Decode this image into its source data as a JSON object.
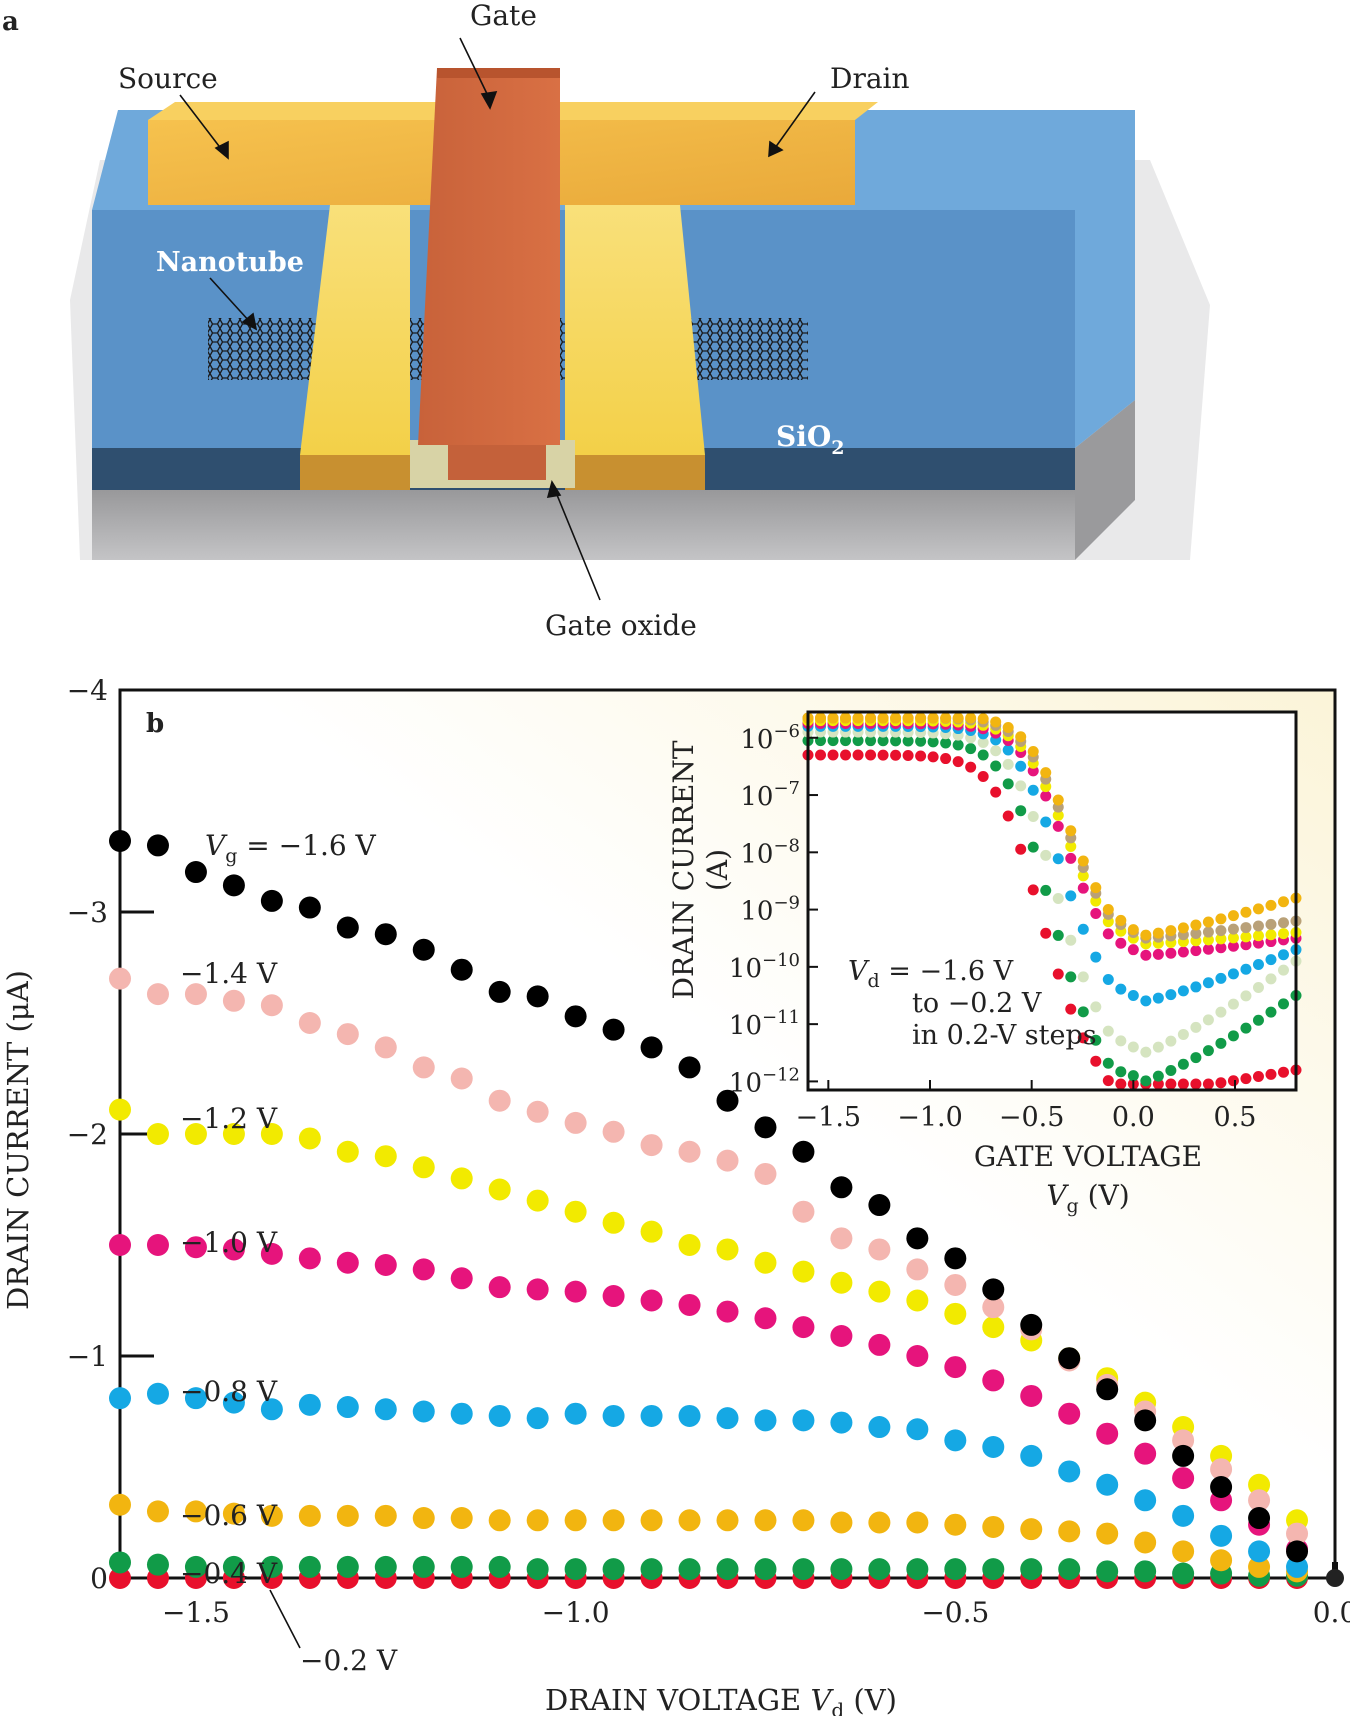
{
  "panel_a": {
    "label": "a",
    "gate": "Gate",
    "source": "Source",
    "drain": "Drain",
    "nanotube": "Nanotube",
    "sio2": "SiO",
    "sio2_sub": "2",
    "gate_oxide": "Gate oxide"
  },
  "chart_data": [
    {
      "id": "main",
      "panel_label": "b",
      "type": "scatter",
      "xlabel_main": "DRAIN VOLTAGE ",
      "xlabel_var": "V",
      "xlabel_sub": "d",
      "xlabel_unit": " (V)",
      "ylabel": "DRAIN CURRENT (μA)",
      "xlim": [
        -1.6,
        0.0
      ],
      "ylim": [
        0,
        -4
      ],
      "xticks": [
        -1.5,
        -1.0,
        -0.5,
        0.0
      ],
      "xtick_labels": [
        "−1.5",
        "−1.0",
        "−0.5",
        "0.0"
      ],
      "yticks": [
        0,
        -1,
        -2,
        -3,
        -4
      ],
      "ytick_labels": [
        "0",
        "−1",
        "−2",
        "−3",
        "−4"
      ],
      "x": [
        -1.6,
        -1.55,
        -1.5,
        -1.45,
        -1.4,
        -1.35,
        -1.3,
        -1.25,
        -1.2,
        -1.15,
        -1.1,
        -1.05,
        -1.0,
        -0.95,
        -0.9,
        -0.85,
        -0.8,
        -0.75,
        -0.7,
        -0.65,
        -0.6,
        -0.55,
        -0.5,
        -0.45,
        -0.4,
        -0.35,
        -0.3,
        -0.25,
        -0.2,
        -0.15,
        -0.1,
        -0.05
      ],
      "series": [
        {
          "name": "−1.6 V",
          "color": "#000000",
          "values": [
            -3.32,
            -3.3,
            -3.18,
            -3.12,
            -3.05,
            -3.02,
            -2.93,
            -2.9,
            -2.83,
            -2.74,
            -2.64,
            -2.62,
            -2.53,
            -2.47,
            -2.39,
            -2.3,
            -2.15,
            -2.03,
            -1.92,
            -1.76,
            -1.68,
            -1.53,
            -1.44,
            -1.3,
            -1.14,
            -0.99,
            -0.85,
            -0.71,
            -0.55,
            -0.41,
            -0.27,
            -0.12
          ]
        },
        {
          "name": "−1.4 V",
          "color": "#f4b6b0",
          "values": [
            -2.7,
            -2.63,
            -2.63,
            -2.6,
            -2.58,
            -2.5,
            -2.45,
            -2.39,
            -2.3,
            -2.25,
            -2.15,
            -2.1,
            -2.05,
            -2.01,
            -1.95,
            -1.92,
            -1.88,
            -1.82,
            -1.65,
            -1.53,
            -1.48,
            -1.39,
            -1.32,
            -1.22,
            -1.12,
            -0.98,
            -0.87,
            -0.75,
            -0.62,
            -0.49,
            -0.35,
            -0.2
          ]
        },
        {
          "name": "−1.2 V",
          "color": "#f2ea00",
          "values": [
            -2.11,
            -2.0,
            -2.0,
            -2.0,
            -2.0,
            -1.98,
            -1.92,
            -1.9,
            -1.85,
            -1.8,
            -1.75,
            -1.7,
            -1.65,
            -1.6,
            -1.56,
            -1.5,
            -1.48,
            -1.42,
            -1.38,
            -1.33,
            -1.29,
            -1.25,
            -1.19,
            -1.13,
            -1.07,
            -0.99,
            -0.9,
            -0.79,
            -0.68,
            -0.55,
            -0.42,
            -0.26
          ]
        },
        {
          "name": "−1.0 V",
          "color": "#e6147c",
          "values": [
            -1.5,
            -1.5,
            -1.49,
            -1.48,
            -1.46,
            -1.44,
            -1.42,
            -1.41,
            -1.39,
            -1.35,
            -1.31,
            -1.3,
            -1.29,
            -1.27,
            -1.25,
            -1.23,
            -1.2,
            -1.17,
            -1.13,
            -1.09,
            -1.05,
            -1.0,
            -0.95,
            -0.89,
            -0.82,
            -0.74,
            -0.65,
            -0.56,
            -0.45,
            -0.35,
            -0.24,
            -0.13
          ]
        },
        {
          "name": "−0.8 V",
          "color": "#15a8e4",
          "values": [
            -0.81,
            -0.83,
            -0.81,
            -0.79,
            -0.76,
            -0.78,
            -0.77,
            -0.76,
            -0.75,
            -0.74,
            -0.73,
            -0.72,
            -0.74,
            -0.73,
            -0.73,
            -0.73,
            -0.72,
            -0.71,
            -0.71,
            -0.7,
            -0.68,
            -0.67,
            -0.62,
            -0.59,
            -0.55,
            -0.48,
            -0.42,
            -0.35,
            -0.28,
            -0.19,
            -0.12,
            -0.05
          ]
        },
        {
          "name": "−0.6 V",
          "color": "#f2b510",
          "values": [
            -0.33,
            -0.3,
            -0.3,
            -0.29,
            -0.28,
            -0.28,
            -0.28,
            -0.28,
            -0.27,
            -0.27,
            -0.26,
            -0.26,
            -0.26,
            -0.26,
            -0.26,
            -0.26,
            -0.26,
            -0.26,
            -0.26,
            -0.25,
            -0.25,
            -0.25,
            -0.24,
            -0.23,
            -0.22,
            -0.21,
            -0.2,
            -0.16,
            -0.12,
            -0.08,
            -0.05,
            -0.03
          ]
        },
        {
          "name": "−0.4 V",
          "color": "#119b48",
          "values": [
            -0.07,
            -0.06,
            -0.05,
            -0.05,
            -0.05,
            -0.05,
            -0.05,
            -0.05,
            -0.05,
            -0.05,
            -0.05,
            -0.04,
            -0.04,
            -0.04,
            -0.04,
            -0.04,
            -0.04,
            -0.04,
            -0.04,
            -0.04,
            -0.04,
            -0.04,
            -0.04,
            -0.04,
            -0.04,
            -0.04,
            -0.03,
            -0.03,
            -0.02,
            -0.02,
            -0.01,
            -0.01
          ]
        },
        {
          "name": "−0.2 V",
          "color": "#e8102c",
          "values": [
            0,
            0,
            0,
            0,
            0,
            0,
            0,
            0,
            0,
            0,
            0,
            0,
            0,
            0,
            0,
            0,
            0,
            0,
            0,
            0,
            0,
            0,
            0,
            0,
            0,
            0,
            0,
            0,
            0,
            0,
            0,
            0
          ]
        }
      ],
      "extra_point": {
        "x": 0.0,
        "y": 0,
        "color": "#222222"
      },
      "annotations": {
        "vg_var": "V",
        "vg_sub": "g",
        "vg_first": " = −1.6 V",
        "series_labels": [
          "−1.4 V",
          "−1.2 V",
          "−1.0 V",
          "−0.8 V",
          "−0.6 V",
          "−0.4 V",
          "−0.2 V"
        ]
      }
    },
    {
      "id": "inset",
      "type": "scatter",
      "yscale": "log",
      "xlabel_line1": "GATE VOLTAGE",
      "xlabel_var": "V",
      "xlabel_sub": "g",
      "xlabel_unit": " (V)",
      "ylabel_line1": "DRAIN CURRENT",
      "ylabel_line2": "(A)",
      "xlim": [
        -1.6,
        0.8
      ],
      "ylim": [
        1e-12,
        3e-06
      ],
      "xticks": [
        -1.5,
        -1.0,
        -0.5,
        0.0,
        0.5
      ],
      "xtick_labels": [
        "−1.5",
        "−1.0",
        "−0.5",
        "0.0",
        "0.5"
      ],
      "yticks_exp": [
        -6,
        -7,
        -8,
        -9,
        -10,
        -11,
        -12
      ],
      "ytick_base": "10",
      "ytick_exp_labels": [
        "−6",
        "−7",
        "−8",
        "−9",
        "−10",
        "−11",
        "−12"
      ],
      "note_var": "V",
      "note_sub": "d",
      "note_line1": " = −1.6 V",
      "note_line2": "to −0.2 V",
      "note_line3": "in  0.2-V steps",
      "series_log": [
        {
          "name": "Vd −1.6 V",
          "color": "#f2b510",
          "on_exp": -5.6,
          "vth": -0.35,
          "min_exp": -9.45,
          "end_exp": -8.8
        },
        {
          "name": "Vd −1.4 V",
          "color": "#b9a178",
          "on_exp": -5.65,
          "vth": -0.36,
          "min_exp": -9.5,
          "end_exp": -9.2
        },
        {
          "name": "Vd −1.2 V",
          "color": "#f2ea00",
          "on_exp": -5.7,
          "vth": -0.37,
          "min_exp": -9.6,
          "end_exp": -9.4
        },
        {
          "name": "Vd −1.0 V",
          "color": "#e6147c",
          "on_exp": -5.75,
          "vth": -0.38,
          "min_exp": -9.8,
          "end_exp": -9.5
        },
        {
          "name": "Vd −0.8 V",
          "color": "#15a8e4",
          "on_exp": -5.8,
          "vth": -0.4,
          "min_exp": -10.6,
          "end_exp": -9.7
        },
        {
          "name": "Vd −0.6 V",
          "color": "#d5e4c0",
          "on_exp": -5.9,
          "vth": -0.42,
          "min_exp": -11.5,
          "end_exp": -9.9
        },
        {
          "name": "Vd −0.4 V",
          "color": "#119b48",
          "on_exp": -6.05,
          "vth": -0.45,
          "min_exp": -12.0,
          "end_exp": -10.5
        },
        {
          "name": "Vd −0.2 V",
          "color": "#e8102c",
          "on_exp": -6.3,
          "vth": -0.5,
          "min_exp": -12.2,
          "end_exp": -11.8
        }
      ]
    }
  ]
}
